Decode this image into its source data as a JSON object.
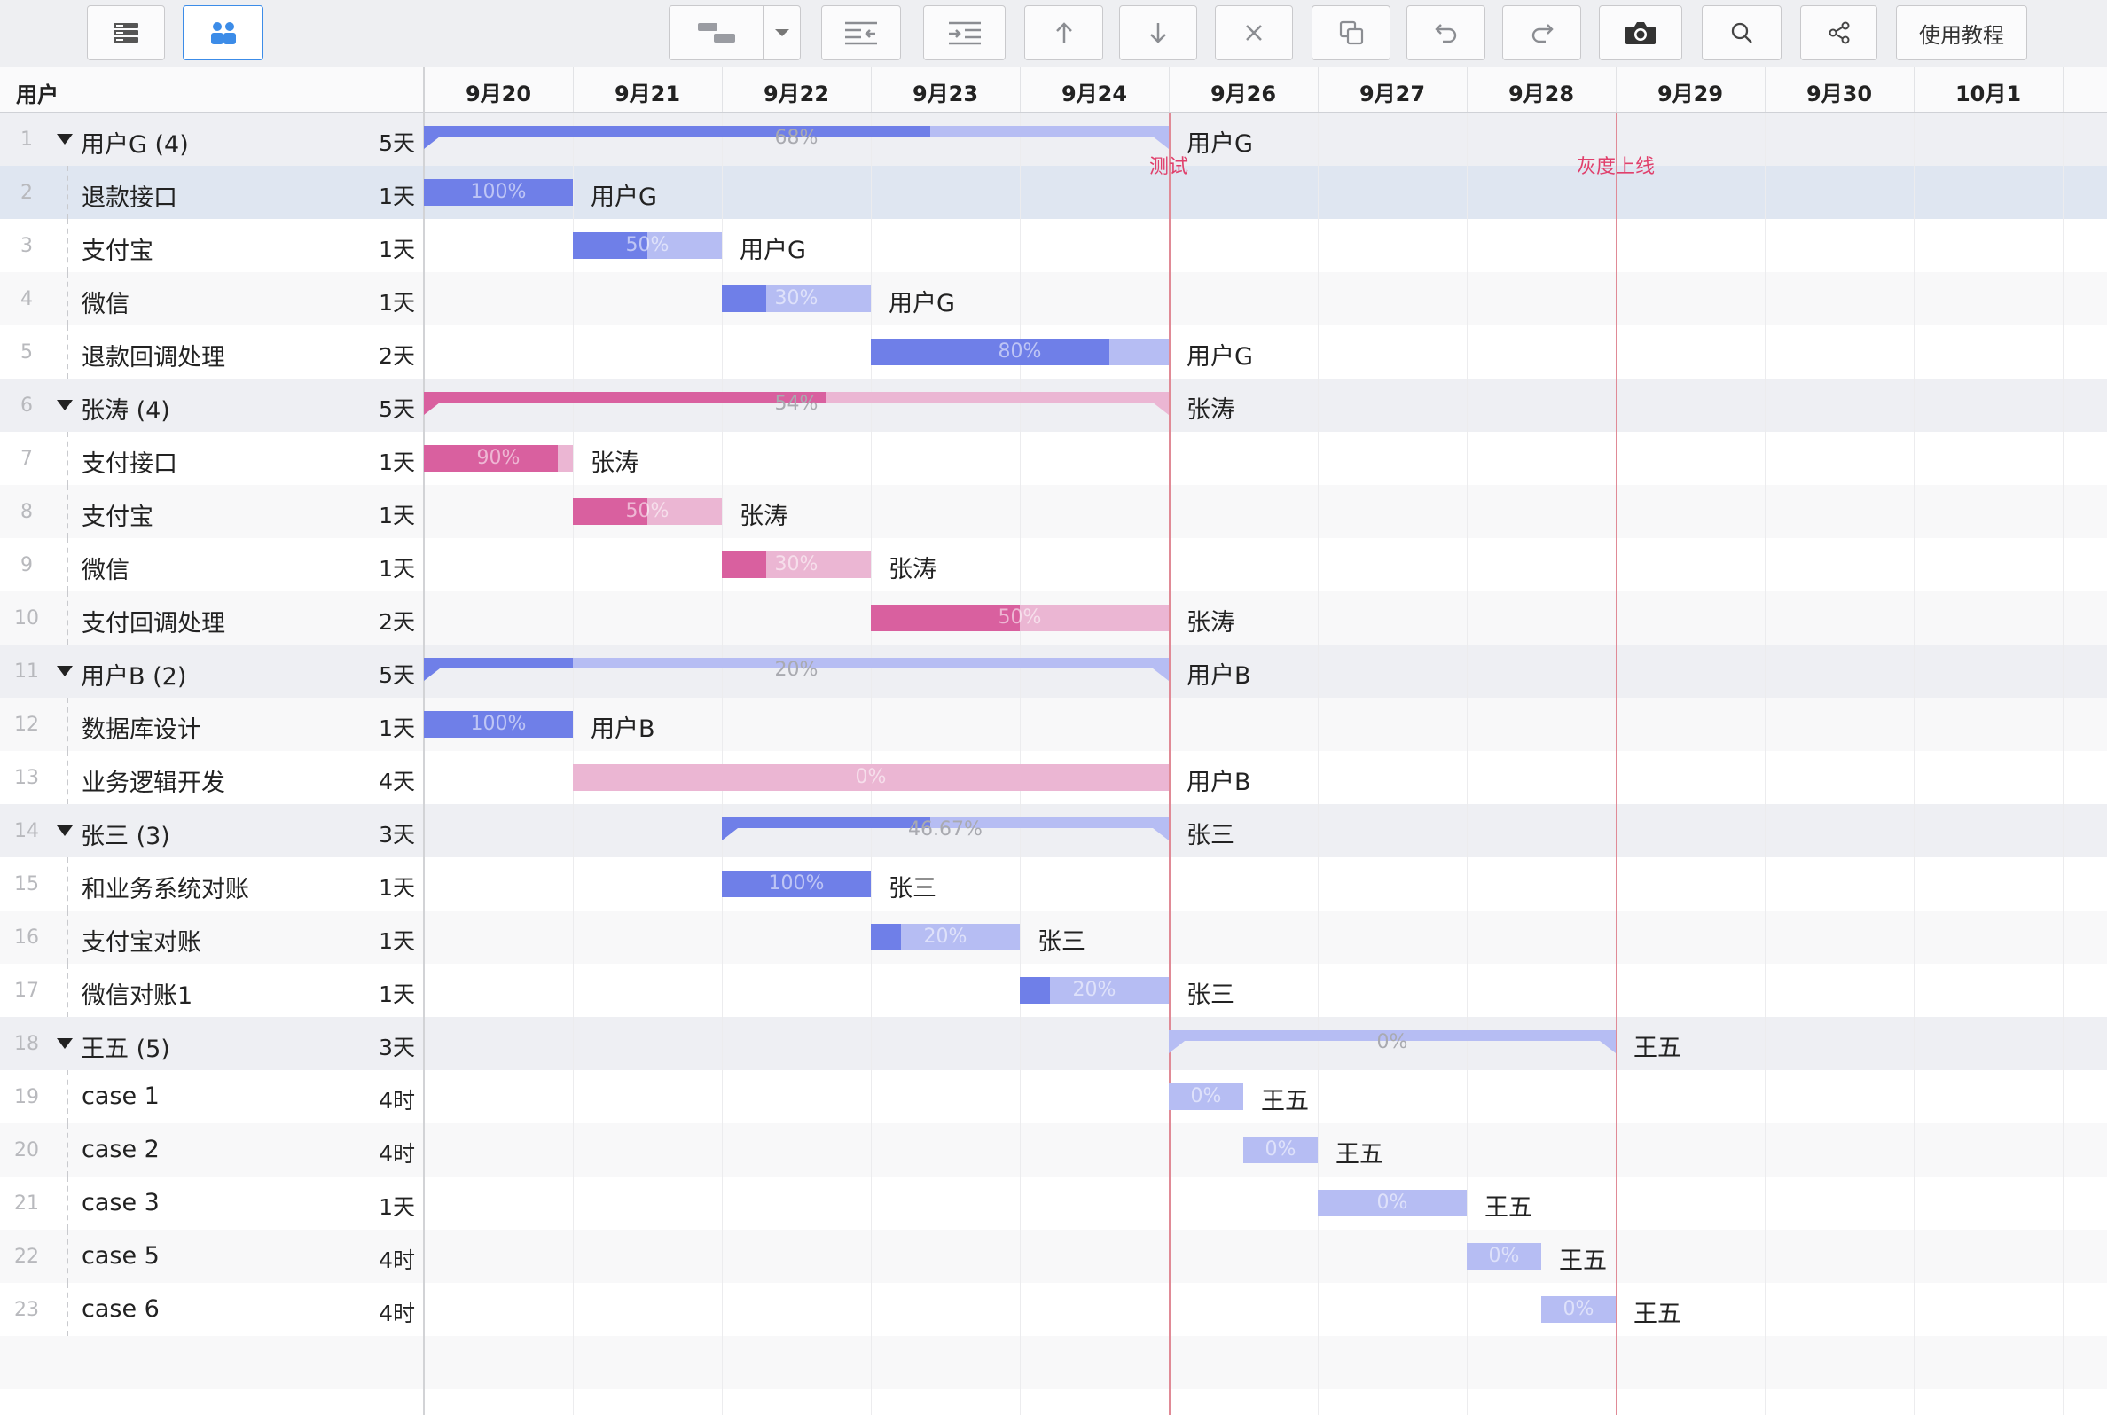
{
  "toolbar": {
    "buttons": [
      {
        "name": "list-view-button",
        "icon": "list-icon"
      },
      {
        "name": "group-by-user-button",
        "icon": "users-icon",
        "active": true
      },
      {
        "name": "task-layout-button",
        "icon": "task-layout-icon"
      },
      {
        "name": "layout-dropdown-button",
        "icon": "chevron-down-icon"
      },
      {
        "name": "outdent-button",
        "icon": "outdent-icon"
      },
      {
        "name": "indent-button",
        "icon": "indent-icon"
      },
      {
        "name": "move-up-button",
        "icon": "arrow-up-icon"
      },
      {
        "name": "move-down-button",
        "icon": "arrow-down-icon"
      },
      {
        "name": "delete-button",
        "icon": "close-icon"
      },
      {
        "name": "copy-button",
        "icon": "copy-icon"
      },
      {
        "name": "undo-button",
        "icon": "undo-icon"
      },
      {
        "name": "redo-button",
        "icon": "redo-icon"
      },
      {
        "name": "screenshot-button",
        "icon": "camera-icon"
      },
      {
        "name": "search-button",
        "icon": "search-icon"
      },
      {
        "name": "share-button",
        "icon": "share-icon"
      }
    ],
    "tutorial_label": "使用教程"
  },
  "header": {
    "column_user": "用户",
    "dates": [
      "9月20",
      "9月21",
      "9月22",
      "9月23",
      "9月24",
      "9月26",
      "9月27",
      "9月28",
      "9月29",
      "9月30",
      "10月1"
    ]
  },
  "markers": [
    {
      "label": "测试"
    },
    {
      "label": "灰度上线"
    }
  ],
  "colors": {
    "blue_fill": "#6f7fe8",
    "blue_bg": "#b6bdf3",
    "pink_fill": "#d9609f",
    "pink_bg": "#ebb6d3",
    "group_row": "#eeeff3",
    "selected_row": "#dfe6f1",
    "alt_row": "#f8f8f9"
  },
  "rows": [
    {
      "num": "1",
      "name": "用户G (4)",
      "dur": "5天",
      "group": true,
      "color": "blue",
      "start": 0,
      "len": 5,
      "pct": "68%",
      "progress": 0.68,
      "owner": "用户G"
    },
    {
      "num": "2",
      "name": "退款接口",
      "dur": "1天",
      "color": "blue",
      "start": 0,
      "len": 1,
      "pct": "100%",
      "progress": 1.0,
      "owner": "用户G",
      "selected": true
    },
    {
      "num": "3",
      "name": "支付宝",
      "dur": "1天",
      "color": "blue",
      "start": 1,
      "len": 1,
      "pct": "50%",
      "progress": 0.5,
      "owner": "用户G"
    },
    {
      "num": "4",
      "name": "微信",
      "dur": "1天",
      "color": "blue",
      "start": 2,
      "len": 1,
      "pct": "30%",
      "progress": 0.3,
      "owner": "用户G"
    },
    {
      "num": "5",
      "name": "退款回调处理",
      "dur": "2天",
      "color": "blue",
      "start": 3,
      "len": 2,
      "pct": "80%",
      "progress": 0.8,
      "owner": "用户G"
    },
    {
      "num": "6",
      "name": "张涛 (4)",
      "dur": "5天",
      "group": true,
      "color": "pink",
      "start": 0,
      "len": 5,
      "pct": "54%",
      "progress": 0.54,
      "owner": "张涛"
    },
    {
      "num": "7",
      "name": "支付接口",
      "dur": "1天",
      "color": "pink",
      "start": 0,
      "len": 1,
      "pct": "90%",
      "progress": 0.9,
      "owner": "张涛"
    },
    {
      "num": "8",
      "name": "支付宝",
      "dur": "1天",
      "color": "pink",
      "start": 1,
      "len": 1,
      "pct": "50%",
      "progress": 0.5,
      "owner": "张涛"
    },
    {
      "num": "9",
      "name": "微信",
      "dur": "1天",
      "color": "pink",
      "start": 2,
      "len": 1,
      "pct": "30%",
      "progress": 0.3,
      "owner": "张涛"
    },
    {
      "num": "10",
      "name": "支付回调处理",
      "dur": "2天",
      "color": "pink",
      "start": 3,
      "len": 2,
      "pct": "50%",
      "progress": 0.5,
      "owner": "张涛"
    },
    {
      "num": "11",
      "name": "用户B (2)",
      "dur": "5天",
      "group": true,
      "color": "blue",
      "start": 0,
      "len": 5,
      "pct": "20%",
      "progress": 0.2,
      "owner": "用户B"
    },
    {
      "num": "12",
      "name": "数据库设计",
      "dur": "1天",
      "color": "blue",
      "start": 0,
      "len": 1,
      "pct": "100%",
      "progress": 1.0,
      "owner": "用户B"
    },
    {
      "num": "13",
      "name": "业务逻辑开发",
      "dur": "4天",
      "color": "pink",
      "start": 1,
      "len": 4,
      "pct": "0%",
      "progress": 0.0,
      "owner": "用户B"
    },
    {
      "num": "14",
      "name": "张三 (3)",
      "dur": "3天",
      "group": true,
      "color": "blue",
      "start": 2,
      "len": 3,
      "pct": "46.67%",
      "progress": 0.4667,
      "owner": "张三"
    },
    {
      "num": "15",
      "name": "和业务系统对账",
      "dur": "1天",
      "color": "blue",
      "start": 2,
      "len": 1,
      "pct": "100%",
      "progress": 1.0,
      "owner": "张三"
    },
    {
      "num": "16",
      "name": "支付宝对账",
      "dur": "1天",
      "color": "blue",
      "start": 3,
      "len": 1,
      "pct": "20%",
      "progress": 0.2,
      "owner": "张三"
    },
    {
      "num": "17",
      "name": "微信对账1",
      "dur": "1天",
      "color": "blue",
      "start": 4,
      "len": 1,
      "pct": "20%",
      "progress": 0.2,
      "owner": "张三"
    },
    {
      "num": "18",
      "name": "王五 (5)",
      "dur": "3天",
      "group": true,
      "color": "blue",
      "start": 5,
      "len": 3,
      "pct": "0%",
      "progress": 0.0,
      "owner": "王五"
    },
    {
      "num": "19",
      "name": "case 1",
      "dur": "4时",
      "color": "blue",
      "start": 5,
      "len": 0.5,
      "pct": "0%",
      "progress": 0.0,
      "owner": "王五"
    },
    {
      "num": "20",
      "name": "case 2",
      "dur": "4时",
      "color": "blue",
      "start": 5.5,
      "len": 0.5,
      "pct": "0%",
      "progress": 0.0,
      "owner": "王五"
    },
    {
      "num": "21",
      "name": "case 3",
      "dur": "1天",
      "color": "blue",
      "start": 6,
      "len": 1,
      "pct": "0%",
      "progress": 0.0,
      "owner": "王五"
    },
    {
      "num": "22",
      "name": "case 5",
      "dur": "4时",
      "color": "blue",
      "start": 7,
      "len": 0.5,
      "pct": "0%",
      "progress": 0.0,
      "owner": "王五"
    },
    {
      "num": "23",
      "name": "case 6",
      "dur": "4时",
      "color": "blue",
      "start": 7.5,
      "len": 0.5,
      "pct": "0%",
      "progress": 0.0,
      "owner": "王五"
    }
  ]
}
